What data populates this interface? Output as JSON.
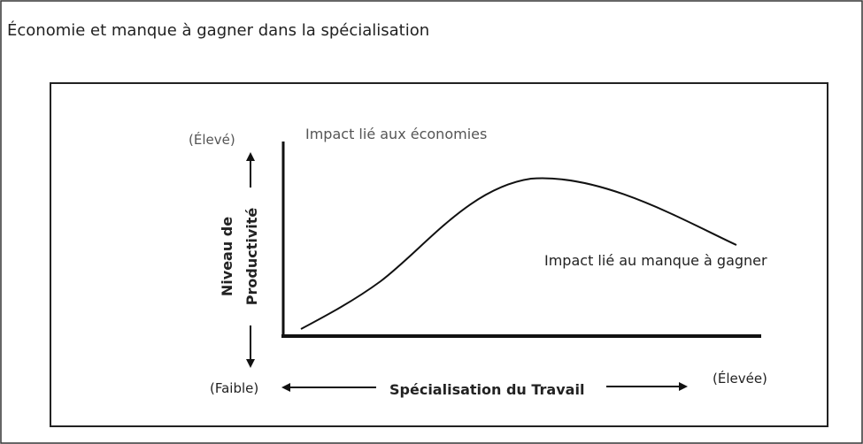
{
  "title": "Économie et manque à gagner dans la spécialisation",
  "diagram": {
    "y_axis": {
      "top_label": "(Élevé)",
      "label_lines": [
        "Niveau de",
        "Productivité"
      ],
      "bottom_label": "(Faible)"
    },
    "x_axis": {
      "label": "Spécialisation du Travail",
      "right_label": "(Élevée)"
    },
    "annotations": [
      "Impact lié aux économies",
      "Impact lié au manque à gagner"
    ]
  }
}
